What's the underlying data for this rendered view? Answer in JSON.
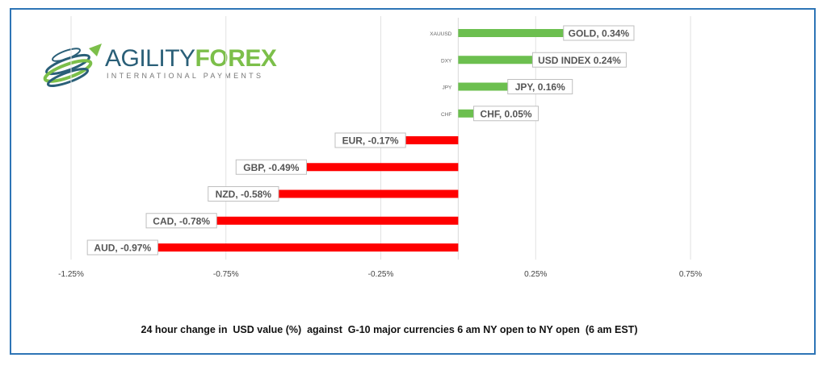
{
  "logo": {
    "brand_part1": "AGILITY",
    "brand_part2": "FOREX",
    "tagline": "INTERNATIONAL PAYMENTS"
  },
  "colors": {
    "positive": "#6cbf4f",
    "negative": "#ff0000",
    "frame": "#2e75b6"
  },
  "chart_data": {
    "type": "bar",
    "orientation": "horizontal",
    "categories": [
      "XAUUSD",
      "DXY",
      "JPY",
      "CHF",
      "EUR",
      "GBP",
      "NZD",
      "CAD",
      "AUD"
    ],
    "values": [
      0.34,
      0.24,
      0.16,
      0.05,
      -0.17,
      -0.49,
      -0.58,
      -0.78,
      -0.97
    ],
    "data_labels": [
      "GOLD, 0.34%",
      "USD INDEX 0.24%",
      "JPY, 0.16%",
      "CHF, 0.05%",
      "EUR, -0.17%",
      "GBP, -0.49%",
      "NZD, -0.58%",
      "CAD, -0.78%",
      "AUD, -0.97%"
    ],
    "xlim": [
      -1.25,
      0.75
    ],
    "x_ticks": [
      -1.25,
      -0.75,
      -0.25,
      0.25,
      0.75
    ],
    "x_tick_labels": [
      "-1.25%",
      "-0.75%",
      "-0.25%",
      "0.25%",
      "0.75%"
    ],
    "grid": true,
    "legend": "none",
    "title": "",
    "xlabel": "24 hour change in  USD value (%)  against  G-10 major currencies 6 am NY open to NY open  (6 am EST)",
    "ylabel": ""
  }
}
